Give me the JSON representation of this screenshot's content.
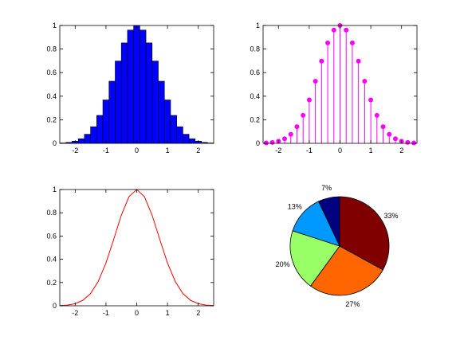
{
  "chart_data": [
    {
      "type": "bar",
      "series": [
        {
          "x": [
            -2.4,
            -2.2,
            -2.0,
            -1.8,
            -1.6,
            -1.4,
            -1.2,
            -1.0,
            -0.8,
            -0.6,
            -0.4,
            -0.2,
            0.0,
            0.2,
            0.4,
            0.6,
            0.8,
            1.0,
            1.2,
            1.4,
            1.6,
            1.8,
            2.0,
            2.2,
            2.4
          ],
          "values": [
            0.003,
            0.008,
            0.018,
            0.039,
            0.077,
            0.141,
            0.237,
            0.368,
            0.527,
            0.698,
            0.852,
            0.961,
            1.0,
            0.961,
            0.852,
            0.698,
            0.527,
            0.368,
            0.237,
            0.141,
            0.077,
            0.039,
            0.018,
            0.008,
            0.003
          ],
          "color": "#0000ff"
        }
      ],
      "xlim": [
        -2.5,
        2.5
      ],
      "ylim": [
        0,
        1
      ],
      "xticks": [
        "-2",
        "-1",
        "0",
        "1",
        "2"
      ],
      "yticks": [
        "0",
        "0.2",
        "0.4",
        "0.6",
        "0.8",
        "1"
      ]
    },
    {
      "type": "stem",
      "series": [
        {
          "x": [
            -2.4,
            -2.2,
            -2.0,
            -1.8,
            -1.6,
            -1.4,
            -1.2,
            -1.0,
            -0.8,
            -0.6,
            -0.4,
            -0.2,
            0.0,
            0.2,
            0.4,
            0.6,
            0.8,
            1.0,
            1.2,
            1.4,
            1.6,
            1.8,
            2.0,
            2.2,
            2.4
          ],
          "values": [
            0.003,
            0.008,
            0.018,
            0.039,
            0.077,
            0.141,
            0.237,
            0.368,
            0.527,
            0.698,
            0.852,
            0.961,
            1.0,
            0.961,
            0.852,
            0.698,
            0.527,
            0.368,
            0.237,
            0.141,
            0.077,
            0.039,
            0.018,
            0.008,
            0.003
          ],
          "color": "#ff00ff"
        }
      ],
      "xlim": [
        -2.5,
        2.5
      ],
      "ylim": [
        0,
        1
      ],
      "xticks": [
        "-2",
        "-1",
        "0",
        "1",
        "2"
      ],
      "yticks": [
        "0",
        "0.2",
        "0.4",
        "0.6",
        "0.8",
        "1"
      ]
    },
    {
      "type": "line",
      "series": [
        {
          "x": [
            -2.5,
            -2.25,
            -2.0,
            -1.75,
            -1.5,
            -1.25,
            -1.0,
            -0.75,
            -0.5,
            -0.25,
            0.0,
            0.25,
            0.5,
            0.75,
            1.0,
            1.25,
            1.5,
            1.75,
            2.0,
            2.25,
            2.5
          ],
          "values": [
            0.002,
            0.006,
            0.018,
            0.047,
            0.105,
            0.21,
            0.368,
            0.57,
            0.779,
            0.939,
            1.0,
            0.939,
            0.779,
            0.57,
            0.368,
            0.21,
            0.105,
            0.047,
            0.018,
            0.006,
            0.002
          ],
          "color": "#ff0000"
        }
      ],
      "xlim": [
        -2.5,
        2.5
      ],
      "ylim": [
        0,
        1
      ],
      "xticks": [
        "-2",
        "-1",
        "0",
        "1",
        "2"
      ],
      "yticks": [
        "0",
        "0.2",
        "0.4",
        "0.6",
        "0.8",
        "1"
      ]
    },
    {
      "type": "pie",
      "slices": [
        {
          "label": "33%",
          "value": 33,
          "color": "#800000"
        },
        {
          "label": "27%",
          "value": 27,
          "color": "#ff6600"
        },
        {
          "label": "20%",
          "value": 20,
          "color": "#99ff66"
        },
        {
          "label": "13%",
          "value": 13,
          "color": "#0099ff"
        },
        {
          "label": "7%",
          "value": 7,
          "color": "#000080"
        }
      ]
    }
  ]
}
